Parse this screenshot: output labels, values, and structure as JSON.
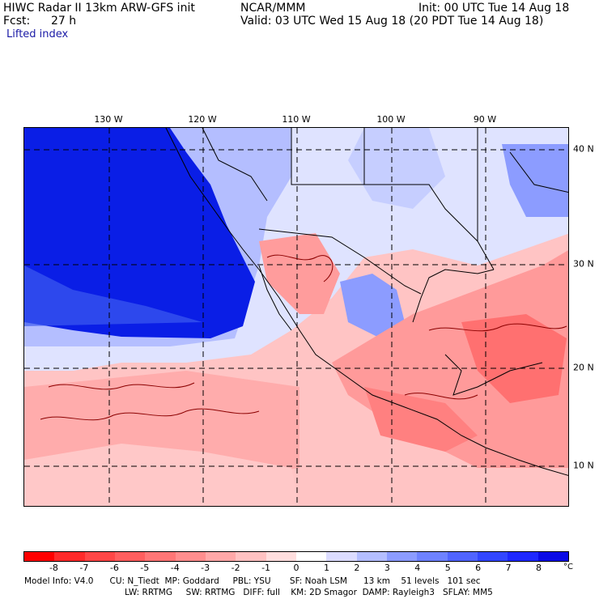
{
  "header": {
    "line1_left": "HIWC Radar II 13km ARW-GFS init",
    "line1_mid": "NCAR/MMM",
    "line1_right": "Init: 00 UTC Tue 14 Aug 18",
    "fcst_label": "Fcst:",
    "fcst_value": "27 h",
    "valid": "Valid: 03 UTC Wed 15 Aug 18 (20 PDT Tue 14 Aug 18)",
    "field": "Lifted index"
  },
  "map": {
    "lon_labels": [
      "130 W",
      "120 W",
      "110 W",
      "100 W",
      "90 W"
    ],
    "lat_labels": [
      "40 N",
      "30 N",
      "20 N",
      "10 N"
    ],
    "colors": {
      "deep_blue": "#0a1ee6",
      "mid_blue": "#3c5af0",
      "light_blue": "#b4beff",
      "white": "#ffffff",
      "light_red": "#ffc0c0",
      "mid_red": "#ff8a8a",
      "red": "#ff5a5a"
    }
  },
  "colorbar": {
    "labels": [
      "-8",
      "-7",
      "-6",
      "-5",
      "-4",
      "-3",
      "-2",
      "-1",
      "0",
      "1",
      "2",
      "3",
      "4",
      "5",
      "6",
      "7",
      "8"
    ],
    "unit": "°C",
    "colors": [
      "#ff0000",
      "#ff2a2a",
      "#ff4646",
      "#ff5e5e",
      "#ff7676",
      "#ff8e8e",
      "#ffa8a8",
      "#ffc2c2",
      "#ffdede",
      "#ffffff",
      "#dcdcff",
      "#b4beff",
      "#8c9cff",
      "#6e82ff",
      "#5064ff",
      "#3246ff",
      "#1e28ff",
      "#0a0ae6"
    ]
  },
  "footer": {
    "line1": "Model Info: V4.0      CU: N_Tiedt  MP: Goddard     PBL: YSU       SF: Noah LSM      13 km    51 levels   101 sec",
    "line2": "LW: RRTMG     SW: RRTMG   DIFF: full    KM: 2D Smagor  DAMP: Rayleigh3   SFLAY: MM5"
  }
}
